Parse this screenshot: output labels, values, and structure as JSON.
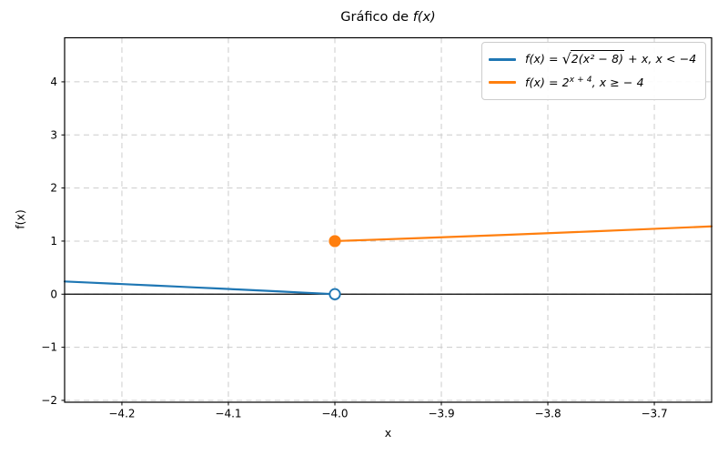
{
  "title": {
    "prefix": "Gráfico de ",
    "math": "f(x)"
  },
  "chart_data": {
    "type": "line",
    "title": "Gráfico de f(x)",
    "xlabel": "x",
    "ylabel": "f(x)",
    "xlim": [
      -4.2538,
      -3.6462
    ],
    "ylim": [
      -2.035,
      4.83
    ],
    "grid": true,
    "grid_style": "dashed",
    "grid_color": "#cccccc",
    "legend_position": "upper right",
    "x_ticks": {
      "values": [
        -4.2,
        -4.1,
        -4.0,
        -3.9,
        -3.8,
        -3.7
      ],
      "labels": [
        "−4.2",
        "−4.1",
        "−4.0",
        "−3.9",
        "−3.8",
        "−3.7"
      ]
    },
    "y_ticks": {
      "values": [
        -2,
        -1,
        0,
        1,
        2,
        3,
        4
      ],
      "labels": [
        "−2",
        "−1",
        "0",
        "1",
        "2",
        "3",
        "4"
      ]
    },
    "axhline": {
      "y": 0,
      "color": "#000000"
    },
    "series": [
      {
        "name": "f(x) = √(2(x² − 8)) + x, x < −4",
        "color": "#1f77b4",
        "x": [
          -4.2538,
          -4.23,
          -4.21,
          -4.19,
          -4.17,
          -4.15,
          -4.13,
          -4.11,
          -4.09,
          -4.07,
          -4.05,
          -4.03,
          -4.01,
          -4.006
        ],
        "y": [
          0.2395,
          0.2182,
          0.1999,
          0.1817,
          0.1633,
          0.1448,
          0.1261,
          0.1072,
          0.088,
          0.0688,
          0.0494,
          0.0298,
          0.01,
          0.006
        ]
      },
      {
        "name": "f(x) = 2^(x + 4), x ≥ − 4",
        "color": "#ff7f0e",
        "x": [
          -4.0,
          -3.96,
          -3.92,
          -3.88,
          -3.84,
          -3.8,
          -3.76,
          -3.72,
          -3.68,
          -3.6462
        ],
        "y": [
          1.0,
          1.0281,
          1.057,
          1.0868,
          1.1173,
          1.1487,
          1.181,
          1.2141,
          1.2483,
          1.2779
        ]
      }
    ],
    "markers": [
      {
        "type": "open",
        "x": -4.0,
        "y": 0.0,
        "color": "#1f77b4"
      },
      {
        "type": "filled",
        "x": -4.0,
        "y": 1.0,
        "color": "#ff7f0e"
      }
    ]
  },
  "legend": {
    "entries": [
      {
        "prefix": "f(x) = ",
        "radicand": "2(x² − 8)",
        "suffix": " + x,  x < −4",
        "color": "#1f77b4"
      },
      {
        "prefix": "f(x) = 2",
        "sup": "x + 4",
        "suffix": ", x ≥ − 4",
        "color": "#ff7f0e"
      }
    ]
  }
}
